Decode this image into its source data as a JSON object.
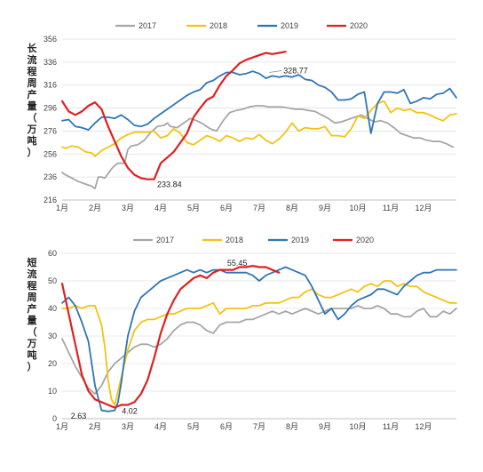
{
  "chart_data": [
    {
      "type": "line",
      "ylabel": "长流程周产量（万吨）",
      "ylim": [
        216,
        356
      ],
      "yticks": [
        216,
        236,
        256,
        276,
        296,
        316,
        336,
        356
      ],
      "xticks": [
        "1月",
        "2月",
        "3月",
        "4月",
        "5月",
        "6月",
        "7月",
        "8月",
        "9月",
        "10月",
        "11月",
        "12月"
      ],
      "xlim": [
        1,
        13
      ],
      "grid": "horizontal",
      "legend": "top",
      "series": [
        {
          "name": "2017",
          "color": "#A6A6A6",
          "x": [
            1.0,
            1.1,
            1.3,
            1.5,
            1.7,
            1.9,
            2.0,
            2.1,
            2.2,
            2.3,
            2.4,
            2.5,
            2.6,
            2.7,
            2.9,
            3.0,
            3.1,
            3.3,
            3.5,
            3.7,
            3.9,
            4.1,
            4.2,
            4.3,
            4.5,
            4.7,
            4.9,
            5.1,
            5.3,
            5.5,
            5.7,
            5.9,
            6.1,
            6.3,
            6.5,
            6.7,
            6.9,
            7.1,
            7.3,
            7.5,
            7.7,
            7.9,
            8.1,
            8.3,
            8.5,
            8.7,
            8.9,
            9.1,
            9.3,
            9.5,
            9.7,
            9.9,
            10.1,
            10.3,
            10.5,
            10.7,
            10.9,
            11.1,
            11.3,
            11.5,
            11.7,
            11.9,
            12.1,
            12.3,
            12.5,
            12.7,
            12.9
          ],
          "y": [
            240,
            238,
            235,
            232,
            230,
            228,
            226,
            236,
            236,
            235,
            239,
            243,
            246,
            248,
            248,
            260,
            263,
            264,
            268,
            275,
            280,
            281,
            283,
            280,
            279,
            283,
            287,
            285,
            282,
            278,
            276,
            285,
            292,
            294,
            295,
            297,
            298,
            298,
            297,
            297,
            297,
            296,
            295,
            295,
            294,
            293,
            290,
            287,
            283,
            284,
            286,
            288,
            290,
            287,
            284,
            285,
            283,
            279,
            274,
            272,
            270,
            270,
            268,
            267,
            267,
            265,
            262
          ]
        },
        {
          "name": "2018",
          "color": "#F2C314",
          "x": [
            1.0,
            1.1,
            1.3,
            1.5,
            1.7,
            1.9,
            2.0,
            2.2,
            2.4,
            2.6,
            2.8,
            3.0,
            3.2,
            3.4,
            3.6,
            3.8,
            4.0,
            4.2,
            4.4,
            4.6,
            4.8,
            5.0,
            5.2,
            5.4,
            5.6,
            5.8,
            6.0,
            6.2,
            6.4,
            6.6,
            6.8,
            7.0,
            7.2,
            7.4,
            7.6,
            7.8,
            8.0,
            8.2,
            8.4,
            8.6,
            8.8,
            9.0,
            9.2,
            9.4,
            9.6,
            9.8,
            10.0,
            10.2,
            10.4,
            10.6,
            10.8,
            11.0,
            11.2,
            11.4,
            11.6,
            11.8,
            12.0,
            12.2,
            12.4,
            12.6,
            12.8,
            13.0
          ],
          "y": [
            262,
            261,
            263,
            262,
            258,
            257,
            254,
            259,
            262,
            265,
            270,
            273,
            275,
            275,
            275,
            276,
            270,
            272,
            278,
            274,
            266,
            264,
            268,
            272,
            270,
            267,
            272,
            270,
            267,
            270,
            269,
            273,
            268,
            265,
            269,
            275,
            283,
            276,
            279,
            278,
            278,
            280,
            272,
            272,
            271,
            278,
            289,
            287,
            294,
            300,
            302,
            292,
            296,
            294,
            295,
            292,
            292,
            290,
            287,
            285,
            290,
            291
          ]
        },
        {
          "name": "2019",
          "color": "#2E75B6",
          "x": [
            1.0,
            1.2,
            1.4,
            1.6,
            1.8,
            2.0,
            2.2,
            2.4,
            2.6,
            2.8,
            3.0,
            3.2,
            3.4,
            3.6,
            3.8,
            4.0,
            4.2,
            4.4,
            4.6,
            4.8,
            5.0,
            5.2,
            5.4,
            5.6,
            5.8,
            6.0,
            6.2,
            6.4,
            6.6,
            6.8,
            7.0,
            7.2,
            7.4,
            7.6,
            7.8,
            8.0,
            8.2,
            8.4,
            8.6,
            8.8,
            9.0,
            9.2,
            9.4,
            9.6,
            9.8,
            10.0,
            10.2,
            10.4,
            10.6,
            10.8,
            11.0,
            11.2,
            11.4,
            11.6,
            11.8,
            12.0,
            12.2,
            12.4,
            12.6,
            12.8,
            13.0
          ],
          "y": [
            285,
            286,
            280,
            279,
            277,
            283,
            288,
            288,
            287,
            290,
            286,
            281,
            280,
            282,
            287,
            291,
            295,
            299,
            303,
            307,
            310,
            312,
            318,
            320,
            324,
            327,
            327,
            325,
            326,
            328,
            326,
            322,
            324,
            323,
            324,
            323,
            325,
            321,
            320,
            316,
            314,
            310,
            303,
            303,
            304,
            308,
            310,
            274,
            300,
            310,
            310,
            309,
            312,
            300,
            302,
            305,
            304,
            308,
            309,
            313,
            305
          ]
        },
        {
          "name": "2020",
          "color": "#E02020",
          "x": [
            1.0,
            1.2,
            1.4,
            1.6,
            1.8,
            2.0,
            2.2,
            2.4,
            2.6,
            2.8,
            3.0,
            3.2,
            3.4,
            3.6,
            3.8,
            4.0,
            4.2,
            4.4,
            4.6,
            4.8,
            5.0,
            5.2,
            5.4,
            5.6,
            5.8,
            6.0,
            6.2,
            6.4,
            6.6,
            6.8,
            7.0,
            7.2,
            7.4,
            7.6,
            7.8
          ],
          "y": [
            302,
            293,
            290,
            293,
            298,
            301,
            295,
            280,
            267,
            254,
            244,
            238,
            235,
            234,
            234,
            248,
            253,
            258,
            266,
            274,
            288,
            296,
            303,
            306,
            316,
            324,
            329,
            335,
            338,
            340,
            342,
            344,
            343,
            344,
            345
          ]
        }
      ],
      "annotations": [
        {
          "text": "328.77",
          "x": 7.25,
          "y": 327
        },
        {
          "text": "233.84",
          "x": 3.65,
          "y": 234
        }
      ]
    },
    {
      "type": "line",
      "ylabel": "短流程周产量（万吨）",
      "ylim": [
        0,
        60
      ],
      "yticks": [
        0,
        10,
        20,
        30,
        40,
        50,
        60
      ],
      "xticks": [
        "1月",
        "2月",
        "3月",
        "4月",
        "5月",
        "6月",
        "7月",
        "8月",
        "9月",
        "10月",
        "11月",
        "12月"
      ],
      "xlim": [
        1,
        13
      ],
      "grid": "horizontal",
      "legend": "top",
      "series": [
        {
          "name": "2017",
          "color": "#A6A6A6",
          "x": [
            1.0,
            1.2,
            1.4,
            1.6,
            1.8,
            2.0,
            2.2,
            2.4,
            2.6,
            2.8,
            3.0,
            3.2,
            3.4,
            3.6,
            3.8,
            4.0,
            4.2,
            4.4,
            4.6,
            4.8,
            5.0,
            5.2,
            5.4,
            5.6,
            5.8,
            6.0,
            6.2,
            6.4,
            6.6,
            6.8,
            7.0,
            7.2,
            7.4,
            7.6,
            7.8,
            8.0,
            8.2,
            8.4,
            8.6,
            8.8,
            9.0,
            9.2,
            9.4,
            9.6,
            9.8,
            10.0,
            10.2,
            10.4,
            10.6,
            10.8,
            11.0,
            11.2,
            11.4,
            11.6,
            11.8,
            12.0,
            12.2,
            12.4,
            12.6,
            12.8,
            13.0
          ],
          "y": [
            29,
            24,
            19,
            15,
            11,
            9,
            12,
            17,
            20,
            22,
            24,
            26,
            27,
            27,
            26,
            27,
            29,
            32,
            34,
            35,
            35,
            34,
            32,
            31,
            34,
            35,
            35,
            35,
            36,
            36,
            37,
            38,
            39,
            38,
            39,
            38,
            39,
            40,
            39,
            38,
            39,
            40,
            40,
            40,
            40,
            41,
            40,
            40,
            41,
            40,
            38,
            38,
            37,
            37,
            39,
            40,
            37,
            37,
            39,
            38,
            40
          ]
        },
        {
          "name": "2018",
          "color": "#F2C314",
          "x": [
            1.0,
            1.2,
            1.4,
            1.6,
            1.8,
            2.0,
            2.2,
            2.3,
            2.4,
            2.5,
            2.6,
            2.8,
            3.0,
            3.2,
            3.4,
            3.6,
            3.8,
            4.0,
            4.2,
            4.4,
            4.6,
            4.8,
            5.0,
            5.2,
            5.4,
            5.6,
            5.8,
            6.0,
            6.2,
            6.4,
            6.6,
            6.8,
            7.0,
            7.2,
            7.4,
            7.6,
            7.8,
            8.0,
            8.2,
            8.4,
            8.6,
            8.8,
            9.0,
            9.2,
            9.4,
            9.6,
            9.8,
            10.0,
            10.2,
            10.4,
            10.6,
            10.8,
            11.0,
            11.2,
            11.4,
            11.6,
            11.8,
            12.0,
            12.2,
            12.4,
            12.6,
            12.8,
            13.0
          ],
          "y": [
            40,
            40,
            41,
            40,
            41,
            41,
            34,
            26,
            14,
            7,
            5,
            15,
            25,
            32,
            35,
            36,
            36,
            37,
            38,
            38,
            39,
            40,
            40,
            40,
            41,
            42,
            38,
            40,
            40,
            40,
            40,
            41,
            41,
            42,
            42,
            42,
            43,
            44,
            44,
            46,
            47,
            45,
            44,
            44,
            45,
            46,
            47,
            46,
            48,
            49,
            48,
            50,
            50,
            48,
            49,
            48,
            48,
            46,
            45,
            44,
            43,
            42,
            42
          ]
        },
        {
          "name": "2019",
          "color": "#2E75B6",
          "x": [
            1.0,
            1.2,
            1.4,
            1.6,
            1.8,
            2.0,
            2.2,
            2.4,
            2.6,
            2.7,
            2.8,
            2.9,
            3.0,
            3.2,
            3.4,
            3.6,
            3.8,
            4.0,
            4.2,
            4.4,
            4.6,
            4.8,
            5.0,
            5.2,
            5.4,
            5.6,
            5.8,
            6.0,
            6.2,
            6.4,
            6.6,
            6.8,
            7.0,
            7.2,
            7.4,
            7.6,
            7.8,
            8.0,
            8.2,
            8.4,
            8.6,
            8.8,
            9.0,
            9.2,
            9.4,
            9.6,
            9.8,
            10.0,
            10.2,
            10.4,
            10.6,
            10.8,
            11.0,
            11.2,
            11.4,
            11.6,
            11.8,
            12.0,
            12.2,
            12.4,
            12.6,
            12.8,
            13.0
          ],
          "y": [
            42,
            44,
            41,
            35,
            28,
            12,
            3,
            2.63,
            3,
            6,
            13,
            22,
            30,
            39,
            44,
            46,
            48,
            50,
            51,
            52,
            53,
            54,
            53,
            54,
            53,
            54,
            54,
            53,
            53,
            53,
            53,
            52,
            50,
            52,
            53,
            54,
            55,
            54,
            53,
            52,
            48,
            43,
            38,
            40,
            36,
            38,
            41,
            43,
            44,
            45,
            47,
            47,
            46,
            45,
            48,
            50,
            52,
            53,
            53,
            54,
            54,
            54,
            54
          ]
        },
        {
          "name": "2020",
          "color": "#E02020",
          "x": [
            1.0,
            1.2,
            1.4,
            1.6,
            1.8,
            2.0,
            2.2,
            2.4,
            2.6,
            2.8,
            3.0,
            3.2,
            3.4,
            3.6,
            3.8,
            4.0,
            4.2,
            4.4,
            4.6,
            4.8,
            5.0,
            5.2,
            5.4,
            5.6,
            5.8,
            6.0,
            6.2,
            6.4,
            6.6,
            6.8,
            7.0,
            7.2,
            7.4,
            7.6
          ],
          "y": [
            49,
            38,
            27,
            16,
            10,
            7,
            6,
            5,
            4.02,
            5,
            5,
            6,
            9,
            14,
            22,
            31,
            38,
            43,
            47,
            49,
            51,
            52,
            51,
            53,
            54,
            54,
            54,
            55,
            55,
            55.45,
            55,
            55,
            54,
            53
          ]
        }
      ],
      "annotations": [
        {
          "text": "55.45",
          "x": 7.05,
          "y": 55.45
        },
        {
          "text": "2.63",
          "x": 2.4,
          "y": 2.63
        },
        {
          "text": "4.02",
          "x": 2.6,
          "y": 4.02
        }
      ]
    }
  ]
}
